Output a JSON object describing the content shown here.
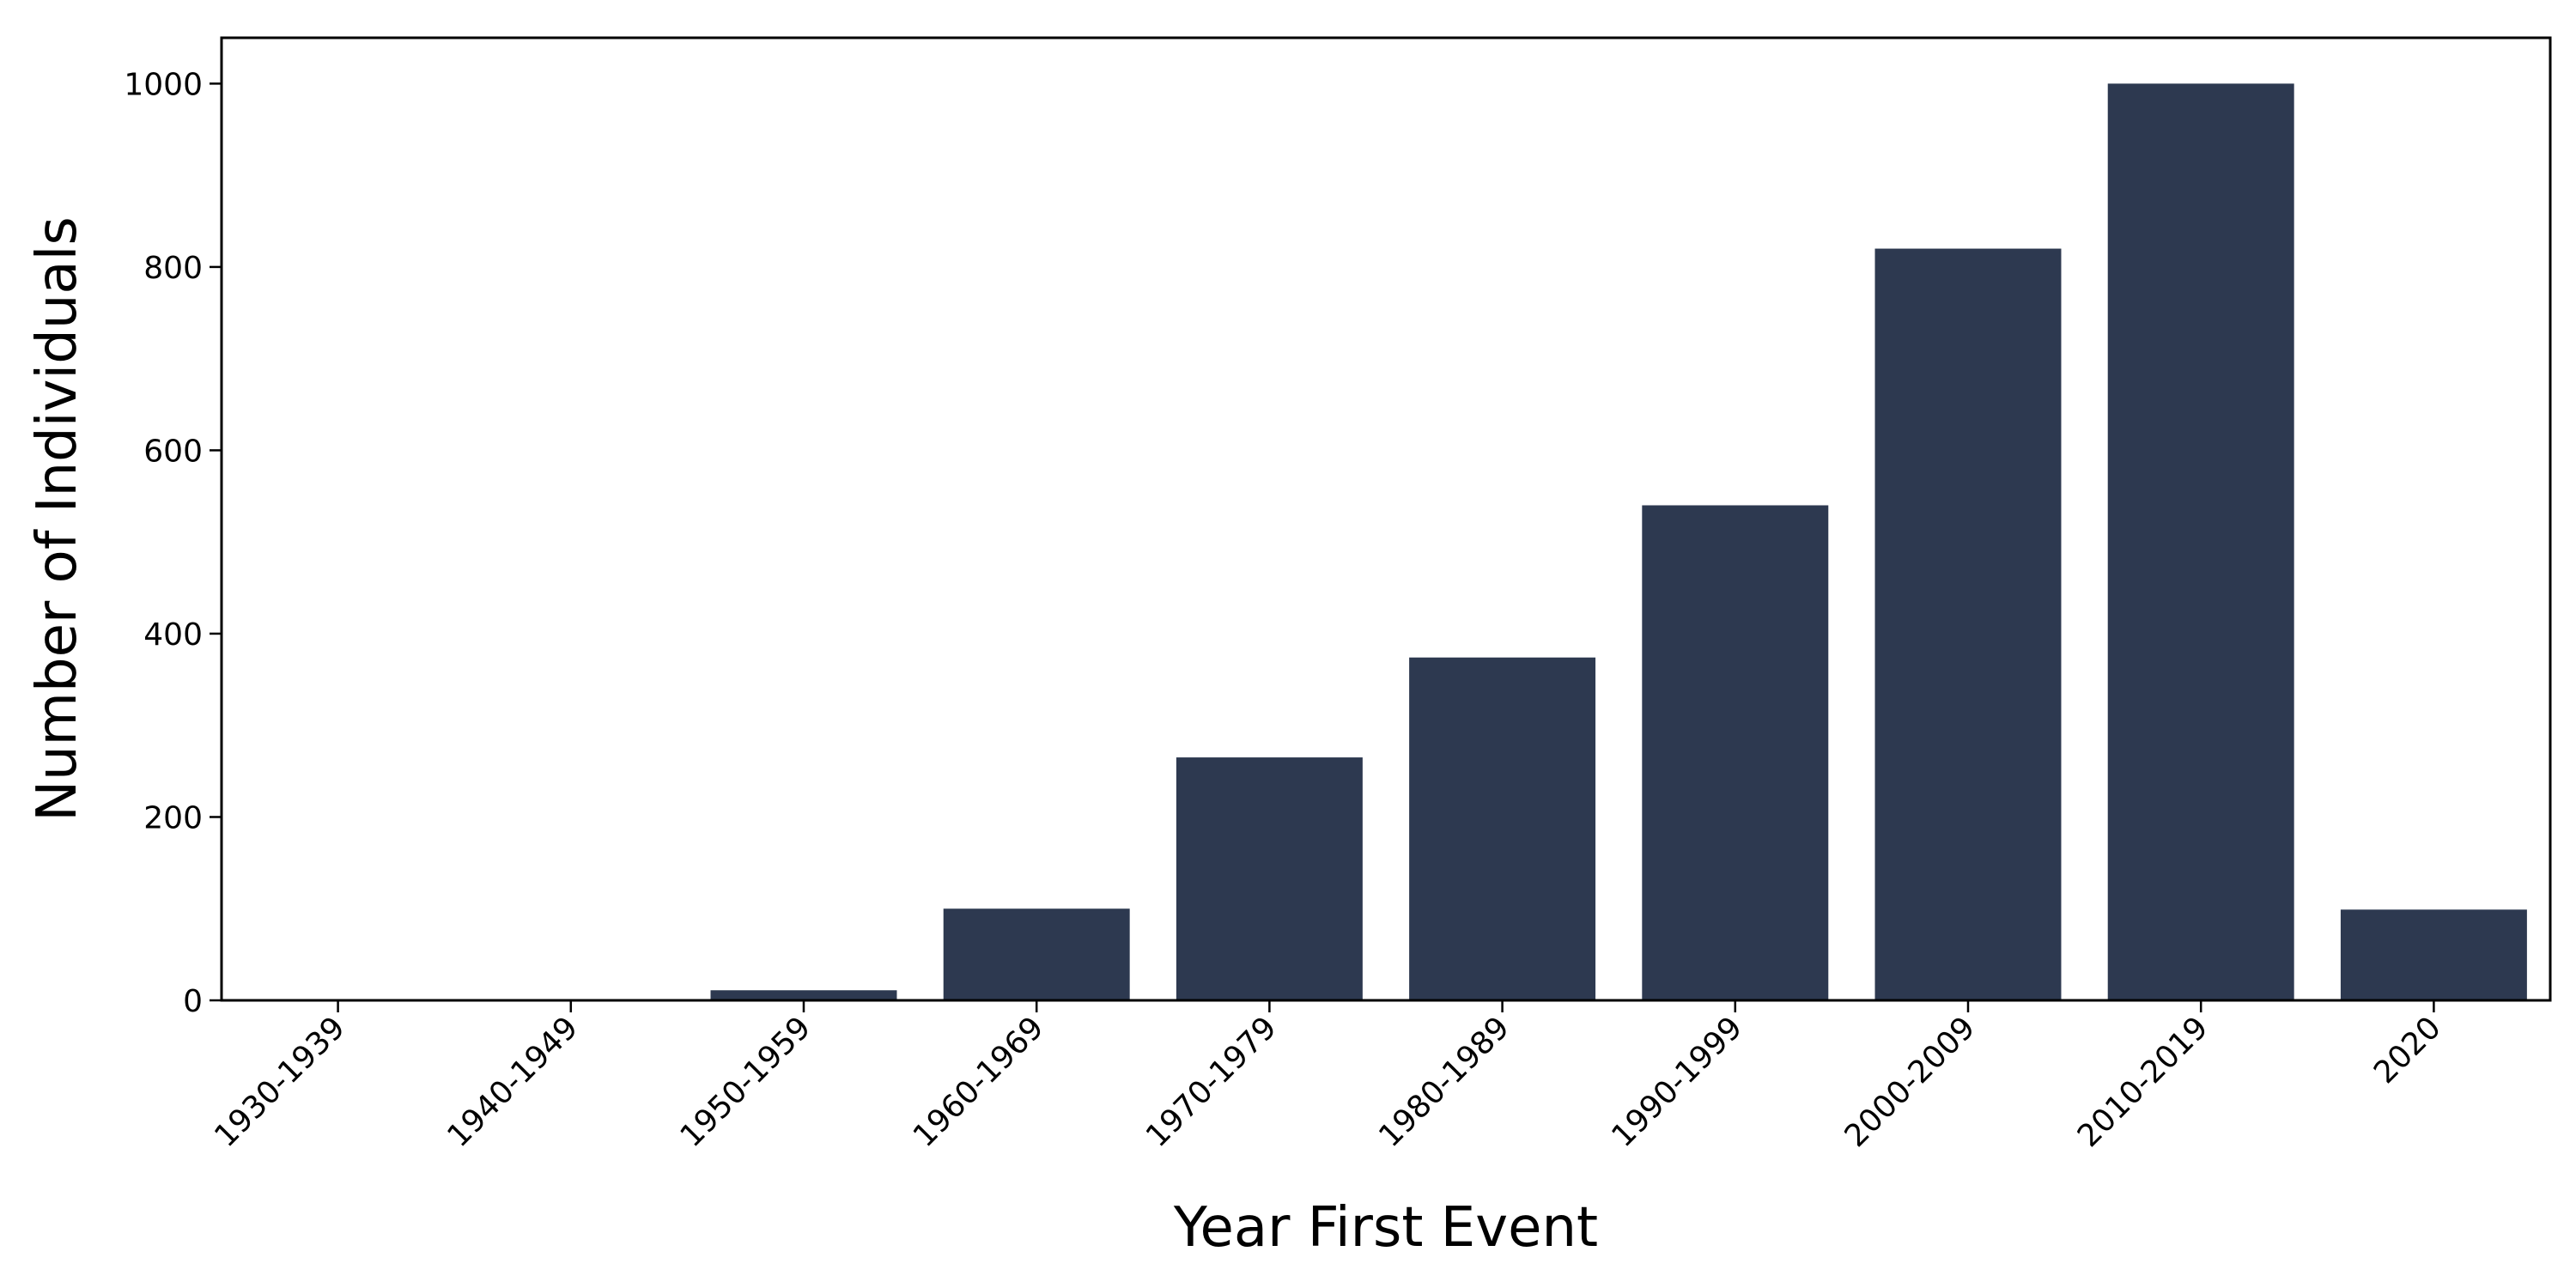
{
  "chart_data": {
    "type": "bar",
    "title": "",
    "xlabel": "Year First Event",
    "ylabel": "Number of Individuals",
    "categories": [
      "1930-1939",
      "1940-1949",
      "1950-1959",
      "1960-1969",
      "1970-1979",
      "1980-1989",
      "1990-1999",
      "2000-2009",
      "2010-2019",
      "2020"
    ],
    "values": [
      1,
      1,
      11,
      100,
      265,
      374,
      540,
      820,
      1000,
      99
    ],
    "ylim": [
      0,
      1050
    ],
    "yticks": [
      0,
      200,
      400,
      600,
      800,
      1000
    ],
    "bar_color": "#2d3950",
    "grid": false,
    "legend": "none"
  }
}
